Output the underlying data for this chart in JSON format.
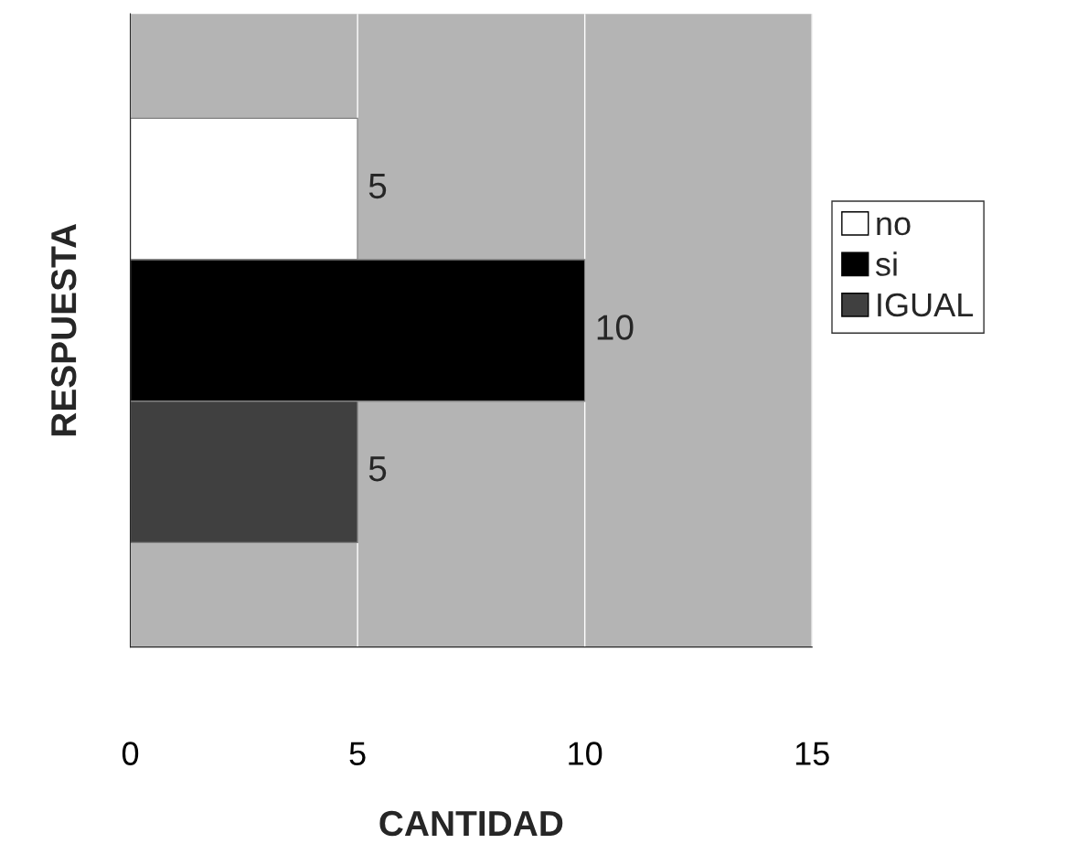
{
  "chart_data": {
    "type": "bar",
    "orientation": "horizontal",
    "categories": [
      null
    ],
    "series": [
      {
        "name": "no",
        "color": "#ffffff",
        "values": [
          5
        ]
      },
      {
        "name": "si",
        "color": "#000000",
        "values": [
          10
        ]
      },
      {
        "name": "IGUAL",
        "color": "#404040",
        "values": [
          5
        ]
      }
    ],
    "xlabel": "CANTIDAD",
    "ylabel": "RESPUESTA",
    "xlim": [
      0,
      15
    ],
    "xticks": [
      0,
      5,
      10,
      15
    ],
    "grid": "x",
    "legend": "right",
    "data_labels": true
  }
}
